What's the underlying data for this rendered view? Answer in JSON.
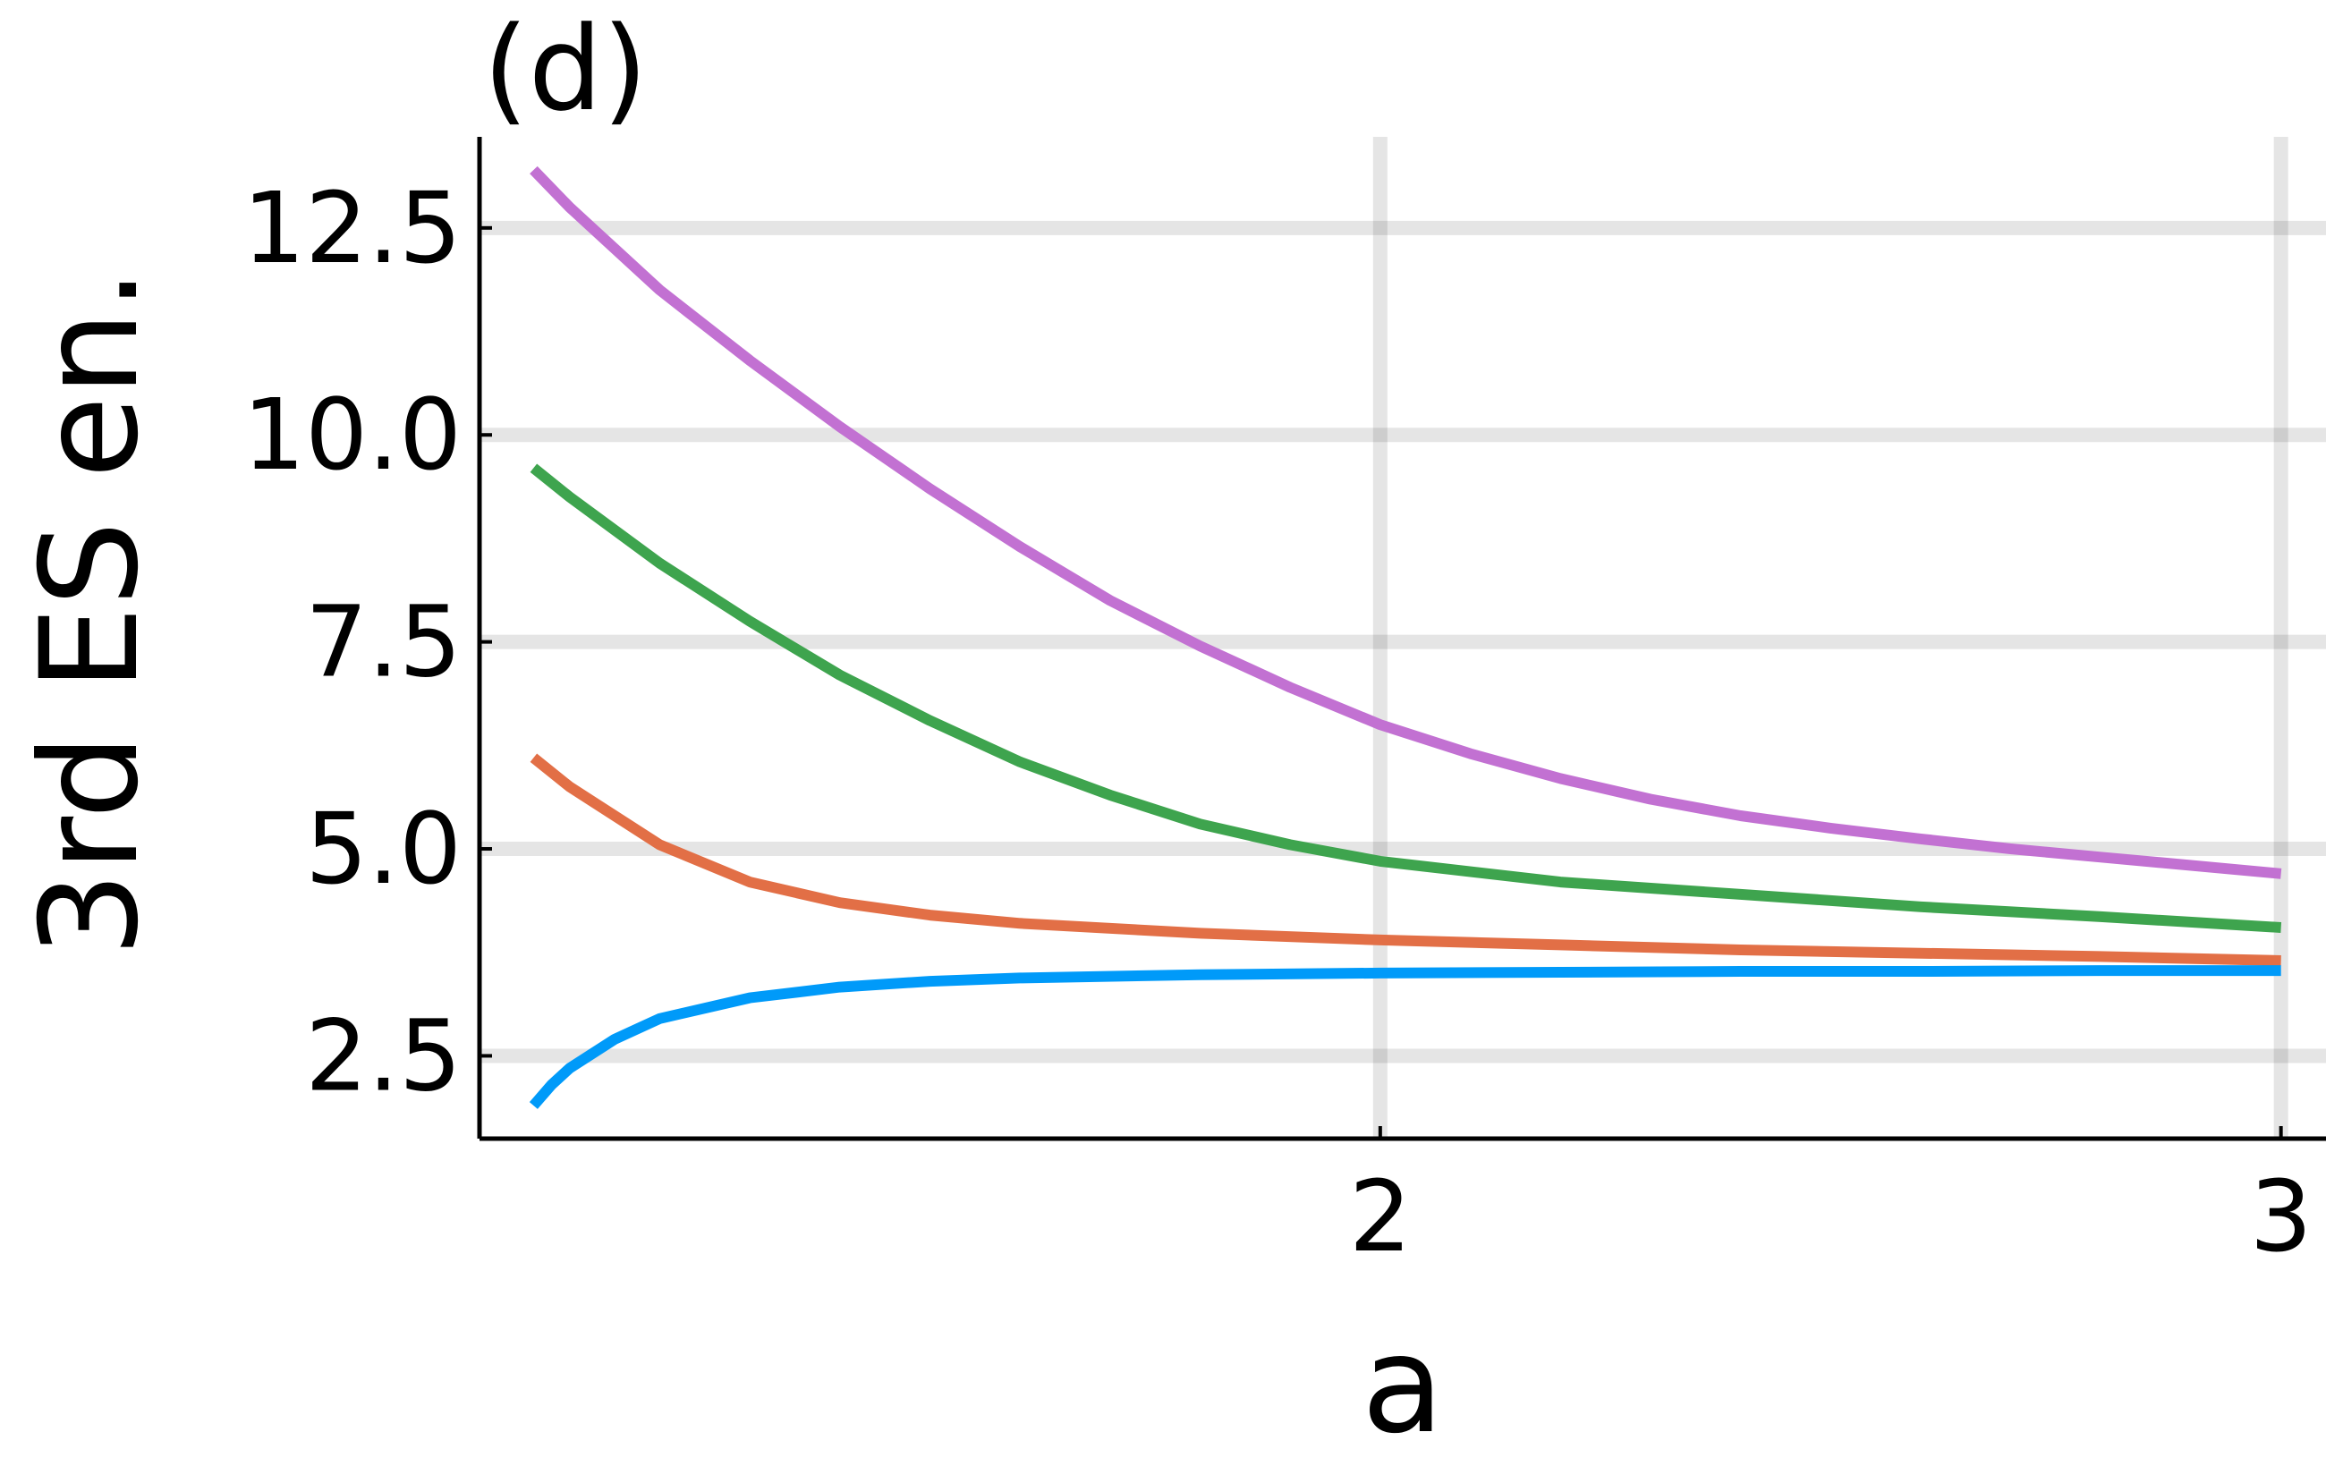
{
  "chart_data": {
    "type": "line",
    "panel_label": "(d)",
    "xlabel": "a",
    "ylabel": "3rd ES en.",
    "xlim": [
      1.0,
      3.05
    ],
    "ylim": [
      1.5,
      13.6
    ],
    "x_ticks": [
      {
        "value": 2,
        "label": "2"
      },
      {
        "value": 3,
        "label": "3"
      }
    ],
    "y_ticks": [
      {
        "value": 2.5,
        "label": "2.5"
      },
      {
        "value": 5.0,
        "label": "5.0"
      },
      {
        "value": 7.5,
        "label": "7.5"
      },
      {
        "value": 10.0,
        "label": "10.0"
      },
      {
        "value": 12.5,
        "label": "12.5"
      }
    ],
    "grid": true,
    "legend": "none",
    "series": [
      {
        "color": "#c271d2",
        "x": [
          1.06,
          1.1,
          1.2,
          1.3,
          1.4,
          1.5,
          1.6,
          1.7,
          1.8,
          1.9,
          2.0,
          2.1,
          2.2,
          2.3,
          2.4,
          2.5,
          2.6,
          2.7,
          2.8,
          2.9,
          3.0
        ],
        "y": [
          13.2,
          12.75,
          11.75,
          10.9,
          10.1,
          9.35,
          8.65,
          8.0,
          7.45,
          6.95,
          6.5,
          6.15,
          5.85,
          5.6,
          5.4,
          5.25,
          5.12,
          5.0,
          4.9,
          4.8,
          4.7
        ]
      },
      {
        "color": "#3ea44e",
        "x": [
          1.06,
          1.1,
          1.2,
          1.3,
          1.4,
          1.5,
          1.6,
          1.7,
          1.8,
          1.9,
          2.0,
          2.2,
          2.4,
          2.6,
          2.8,
          3.0
        ],
        "y": [
          9.6,
          9.25,
          8.45,
          7.75,
          7.1,
          6.55,
          6.05,
          5.65,
          5.3,
          5.05,
          4.85,
          4.6,
          4.45,
          4.3,
          4.18,
          4.05
        ]
      },
      {
        "color": "#e26f46",
        "x": [
          1.06,
          1.1,
          1.2,
          1.3,
          1.4,
          1.5,
          1.6,
          1.8,
          2.0,
          2.2,
          2.4,
          2.6,
          2.8,
          3.0
        ],
        "y": [
          6.1,
          5.75,
          5.05,
          4.6,
          4.35,
          4.2,
          4.1,
          3.98,
          3.9,
          3.84,
          3.78,
          3.74,
          3.7,
          3.65
        ]
      },
      {
        "color": "#009af9",
        "x": [
          1.06,
          1.08,
          1.1,
          1.15,
          1.2,
          1.3,
          1.4,
          1.5,
          1.6,
          1.8,
          2.0,
          2.2,
          2.4,
          2.6,
          2.8,
          3.0
        ],
        "y": [
          1.9,
          2.15,
          2.35,
          2.7,
          2.95,
          3.2,
          3.33,
          3.4,
          3.44,
          3.48,
          3.5,
          3.51,
          3.52,
          3.52,
          3.53,
          3.53
        ]
      }
    ]
  }
}
